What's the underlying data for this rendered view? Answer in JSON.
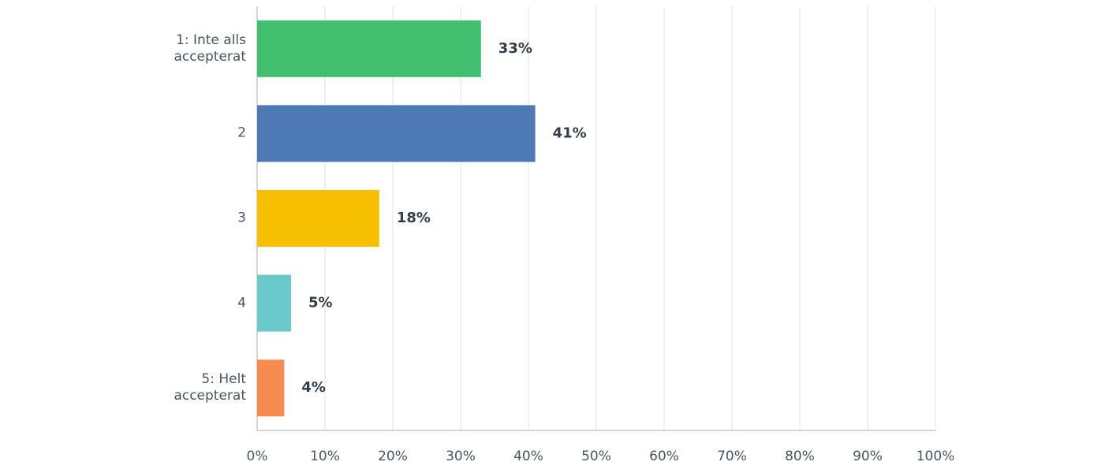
{
  "chart_data": {
    "type": "bar",
    "orientation": "horizontal",
    "categories": [
      "1: Inte alls accepterat",
      "2",
      "3",
      "4",
      "5: Helt accepterat"
    ],
    "values": [
      33,
      41,
      18,
      5,
      4
    ],
    "value_labels": [
      "33%",
      "41%",
      "18%",
      "5%",
      "4%"
    ],
    "colors": [
      "#41bf6f",
      "#4d79b5",
      "#f6c000",
      "#6ac9cb",
      "#f78b4f"
    ],
    "xlim": [
      0,
      100
    ],
    "xticks": [
      {
        "value": 0,
        "label": "0%"
      },
      {
        "value": 10,
        "label": "10%"
      },
      {
        "value": 20,
        "label": "20%"
      },
      {
        "value": 30,
        "label": "30%"
      },
      {
        "value": 40,
        "label": "40%"
      },
      {
        "value": 50,
        "label": "50%"
      },
      {
        "value": 60,
        "label": "60%"
      },
      {
        "value": 70,
        "label": "70%"
      },
      {
        "value": 80,
        "label": "80%"
      },
      {
        "value": 90,
        "label": "90%"
      },
      {
        "value": 100,
        "label": "100%"
      }
    ],
    "grid": true
  }
}
